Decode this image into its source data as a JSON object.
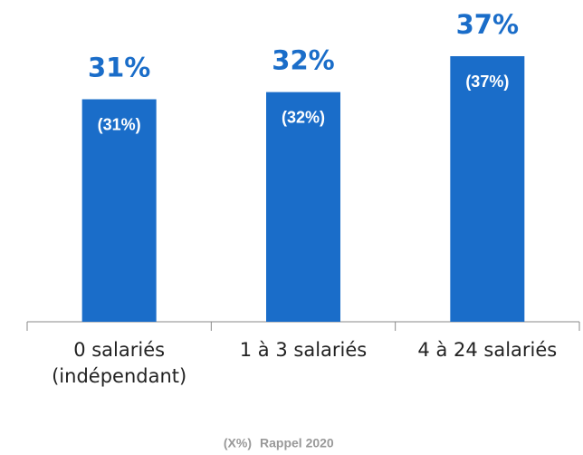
{
  "chart_data": {
    "type": "bar",
    "categories": [
      "0 salariés\n(indépendant)",
      "1 à 3 salariés",
      "4 à 24 salariés"
    ],
    "values": [
      31,
      32,
      37
    ],
    "value_labels": [
      "31%",
      "32%",
      "37%"
    ],
    "inner_labels": [
      "(31%)",
      "(32%)",
      "(37%)"
    ],
    "color": "#1a6dc9",
    "legend_key": "(X%)",
    "legend_text": "Rappel 2020"
  }
}
